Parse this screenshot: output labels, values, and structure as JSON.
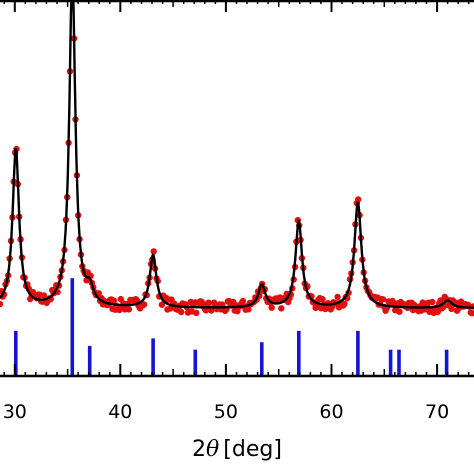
{
  "chart_data": {
    "type": "line",
    "xlabel_parts": {
      "prefix": "2",
      "symbol": "θ",
      "unit": "[deg]"
    },
    "x_range": [
      28.6,
      73.5
    ],
    "y_range": [
      0,
      100
    ],
    "x_ticks": [
      30,
      40,
      50,
      60,
      70
    ],
    "x_tick_labels": [
      "30",
      "40",
      "50",
      "60",
      "70"
    ],
    "grid": false,
    "colors": {
      "data_points": "#e01010",
      "fit_line": "#000000",
      "reference_bars": "#1414d2",
      "axes": "#000000"
    },
    "fit_baseline": 18,
    "peaks": [
      {
        "center": 30.1,
        "height": 42,
        "fwhm": 0.75
      },
      {
        "center": 35.45,
        "height": 88,
        "fwhm": 0.7
      },
      {
        "center": 37.1,
        "height": 4,
        "fwhm": 0.8
      },
      {
        "center": 43.1,
        "height": 14,
        "fwhm": 0.75
      },
      {
        "center": 53.4,
        "height": 6,
        "fwhm": 0.8
      },
      {
        "center": 56.9,
        "height": 23,
        "fwhm": 0.75
      },
      {
        "center": 62.5,
        "height": 28,
        "fwhm": 0.8
      },
      {
        "center": 71.0,
        "height": 2,
        "fwhm": 1.0
      }
    ],
    "reference_bars": [
      {
        "x": 30.1,
        "intensity": 12
      },
      {
        "x": 35.45,
        "intensity": 26
      },
      {
        "x": 37.1,
        "intensity": 8
      },
      {
        "x": 43.1,
        "intensity": 10
      },
      {
        "x": 47.1,
        "intensity": 7
      },
      {
        "x": 53.4,
        "intensity": 9
      },
      {
        "x": 56.9,
        "intensity": 12
      },
      {
        "x": 62.5,
        "intensity": 12
      },
      {
        "x": 65.6,
        "intensity": 7
      },
      {
        "x": 66.4,
        "intensity": 7
      },
      {
        "x": 70.9,
        "intensity": 7
      }
    ]
  }
}
